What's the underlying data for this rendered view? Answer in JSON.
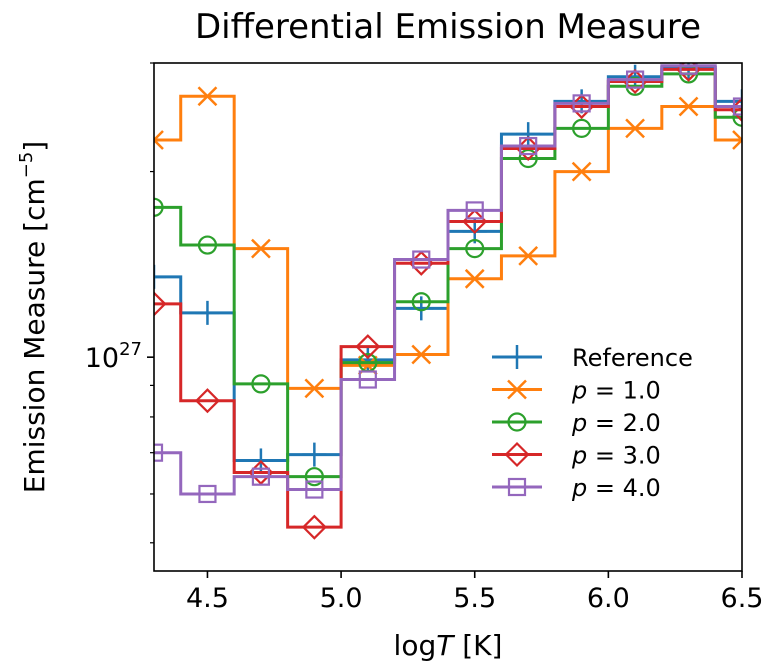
{
  "chart_data": {
    "type": "line",
    "title": "Differential Emission Measure",
    "xlabel_main": "log",
    "xlabel_var": "T",
    "xlabel_unit": " [K]",
    "ylabel": "Emission Measure [cm",
    "ylabel_exp": "−5",
    "ylabel_close": "]",
    "xlim": [
      4.3,
      6.5
    ],
    "ylim": [
      4.5e+26,
      3e+27
    ],
    "yscale": "log",
    "x_ticks": [
      4.5,
      5.0,
      5.5,
      6.0,
      6.5
    ],
    "x_tick_labels": [
      "4.5",
      "5.0",
      "5.5",
      "6.0",
      "6.5"
    ],
    "y_major_tick": 1e+27,
    "y_tick_label_base": "10",
    "y_tick_label_exp": "27",
    "y_minor_ticks": [
      5e+26,
      6e+26,
      7e+26,
      8e+26,
      9e+26,
      2e+27,
      3e+27
    ],
    "bin_edges": [
      4.2,
      4.4,
      4.6,
      4.8,
      5.0,
      5.2,
      5.4,
      5.6,
      5.8,
      6.0,
      6.2,
      6.4,
      6.6
    ],
    "bin_centers": [
      4.3,
      4.5,
      4.7,
      4.9,
      5.1,
      5.3,
      5.5,
      5.7,
      5.9,
      6.1,
      6.3,
      6.5
    ],
    "legend_position": "lower-right",
    "series": [
      {
        "name": "Reference",
        "marker": "plus",
        "color": "#1f77b4",
        "values": [
          1.35e+27,
          1.18e+27,
          6.8e+26,
          6.95e+26,
          9.9e+26,
          1.2e+27,
          1.6e+27,
          2.3e+27,
          2.6e+27,
          2.85e+27,
          2.95e+27,
          2.6e+27
        ]
      },
      {
        "name": "p = 1.0",
        "marker": "x",
        "color": "#ff7f0e",
        "values": [
          2.25e+27,
          2.65e+27,
          1.5e+27,
          8.9e+26,
          9.7e+26,
          1.01e+27,
          1.34e+27,
          1.46e+27,
          2e+27,
          2.35e+27,
          2.55e+27,
          2.25e+27
        ]
      },
      {
        "name": "p = 2.0",
        "marker": "circle",
        "color": "#2ca02c",
        "values": [
          1.75e+27,
          1.52e+27,
          9.05e+26,
          6.4e+26,
          9.8e+26,
          1.23e+27,
          1.5e+27,
          2.1e+27,
          2.35e+27,
          2.75e+27,
          2.88e+27,
          2.45e+27
        ]
      },
      {
        "name": "p = 3.0",
        "marker": "diamond",
        "color": "#d62728",
        "values": [
          1.22e+27,
          8.5e+26,
          6.5e+26,
          5.3e+26,
          1.04e+27,
          1.42e+27,
          1.66e+27,
          2.18e+27,
          2.55e+27,
          2.8e+27,
          2.93e+27,
          2.52e+27
        ]
      },
      {
        "name": "p = 4.0",
        "marker": "square",
        "color": "#9467bd",
        "values": [
          7e+26,
          6e+26,
          6.4e+26,
          6.1e+26,
          9.2e+26,
          1.44e+27,
          1.73e+27,
          2.2e+27,
          2.58e+27,
          2.82e+27,
          2.97e+27,
          2.55e+27
        ]
      }
    ]
  }
}
